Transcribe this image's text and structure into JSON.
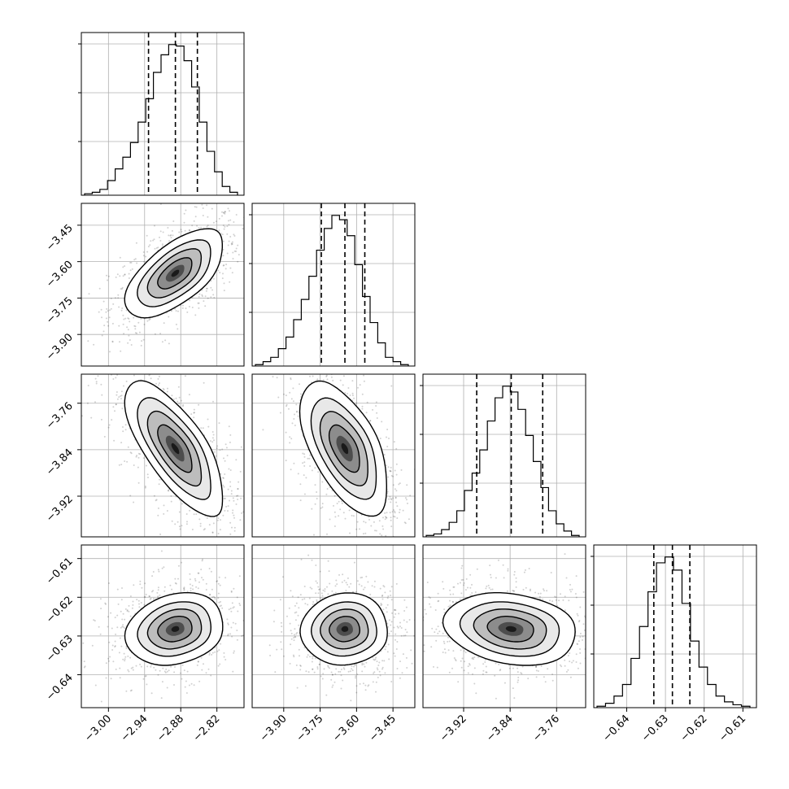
{
  "chart_data": {
    "type": "corner",
    "title": "",
    "quantile_line_style": "dashed",
    "grid": true,
    "parameters": [
      {
        "range": [
          -3.045,
          -2.775
        ],
        "ticks": [
          -3.0,
          -2.94,
          -2.88,
          -2.82
        ],
        "tick_labels": [
          "−3.00",
          "−2.94",
          "−2.88",
          "−2.82"
        ],
        "quantiles": [
          -2.9335,
          -2.8889,
          -2.8524
        ],
        "hist_bins": [
          1,
          2,
          4,
          10,
          18,
          26,
          36,
          50,
          66,
          84,
          96,
          103,
          102,
          92,
          74,
          50,
          30,
          16,
          6,
          2
        ]
      },
      {
        "range": [
          -4.03,
          -3.36
        ],
        "ticks": [
          -3.9,
          -3.75,
          -3.6,
          -3.45
        ],
        "tick_labels": [
          "−3.90",
          "−3.75",
          "−3.60",
          "−3.45"
        ],
        "quantiles": [
          -3.745,
          -3.648,
          -3.566
        ],
        "hist_bins": [
          1,
          3,
          6,
          12,
          20,
          32,
          46,
          62,
          80,
          95,
          104,
          101,
          90,
          70,
          48,
          30,
          16,
          6,
          3,
          1
        ]
      },
      {
        "range": [
          -3.99,
          -3.71
        ],
        "ticks": [
          -3.92,
          -3.84,
          -3.76
        ],
        "tick_labels": [
          "−3.92",
          "−3.84",
          "−3.76"
        ],
        "quantiles": [
          -3.8975,
          -3.8381,
          -3.7839
        ],
        "hist_bins": [
          1,
          2,
          5,
          10,
          18,
          32,
          44,
          60,
          80,
          96,
          104,
          100,
          88,
          70,
          52,
          34,
          18,
          9,
          4,
          1
        ]
      },
      {
        "range": [
          -0.6485,
          -0.6065
        ],
        "ticks": [
          -0.64,
          -0.63,
          -0.62,
          -0.61
        ],
        "tick_labels": [
          "−0.64",
          "−0.63",
          "−0.62",
          "−0.61"
        ],
        "quantiles": [
          -0.633,
          -0.6282,
          -0.6237
        ],
        "hist_bins": [
          1,
          3,
          8,
          16,
          34,
          56,
          80,
          100,
          104,
          95,
          72,
          46,
          28,
          16,
          8,
          4,
          2,
          1
        ]
      }
    ],
    "pairs": [
      {
        "row": 1,
        "col": 0,
        "correlation": 0.6
      },
      {
        "row": 2,
        "col": 0,
        "correlation": -0.7
      },
      {
        "row": 2,
        "col": 1,
        "correlation": -0.55
      },
      {
        "row": 3,
        "col": 0,
        "correlation": 0.15
      },
      {
        "row": 3,
        "col": 1,
        "correlation": 0.0
      },
      {
        "row": 3,
        "col": 2,
        "correlation": -0.15
      }
    ]
  }
}
